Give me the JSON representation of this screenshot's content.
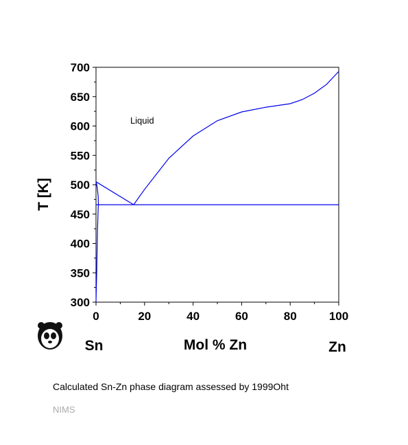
{
  "chart_data": {
    "type": "line",
    "title": "",
    "xlabel": "Mol % Zn",
    "ylabel": "T [K]",
    "xlim": [
      0,
      100
    ],
    "ylim": [
      300,
      700
    ],
    "x_ticks": [
      0,
      20,
      40,
      60,
      80,
      100
    ],
    "y_ticks": [
      300,
      350,
      400,
      450,
      500,
      550,
      600,
      650,
      700
    ],
    "x_end_labels": {
      "left": "Sn",
      "right": "Zn"
    },
    "line_color": "#0000ee",
    "grid": false,
    "annotations": [
      {
        "text": "Liquid",
        "x": 19,
        "y": 604
      }
    ],
    "series": [
      {
        "x": [
          0,
          15.5
        ],
        "y": [
          505,
          466
        ]
      },
      {
        "x": [
          15.5,
          20,
          30,
          40,
          50,
          60,
          70,
          80,
          85,
          90,
          95,
          100
        ],
        "y": [
          466,
          492,
          545,
          583,
          609,
          624,
          632,
          638,
          645,
          656,
          671,
          693
        ]
      },
      {
        "x": [
          0,
          100
        ],
        "y": [
          466,
          466
        ]
      },
      {
        "x": [
          0,
          0.3,
          0.6,
          0.9,
          1.0,
          0.9,
          0.6,
          0.3,
          0
        ],
        "y": [
          300,
          355,
          420,
          460,
          466,
          480,
          492,
          500,
          505
        ]
      }
    ]
  },
  "caption": "Calculated Sn-Zn phase diagram assessed by 1999Oht",
  "footer": "NIMS",
  "logo": {
    "icon": "panda-icon"
  }
}
